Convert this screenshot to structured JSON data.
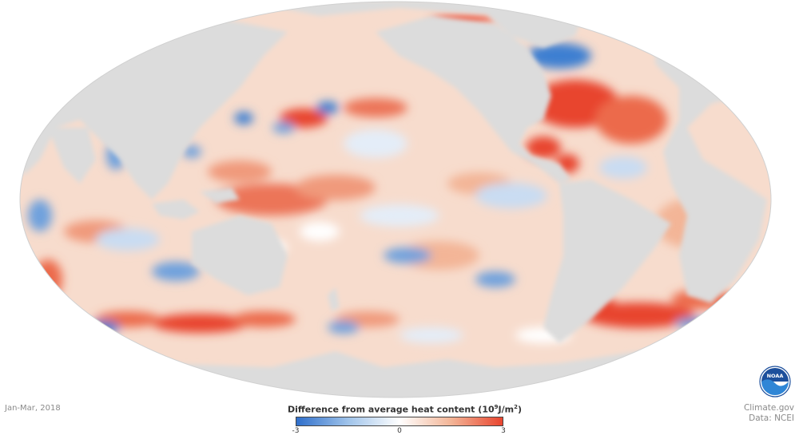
{
  "date_label": "Jan-Mar, 2018",
  "legend": {
    "title": "Difference from average heat content",
    "unit_prefix": "(10",
    "unit_exp": "9",
    "unit_mid": "J/m",
    "unit_exp2": "2",
    "unit_suffix": ")",
    "min_label": "-3",
    "mid_label": "0",
    "max_label": "3",
    "colors": [
      "#2f6fcb",
      "#9fc3ea",
      "#ffffff",
      "#f3b597",
      "#e8452f"
    ]
  },
  "credits": {
    "line1": "Climate.gov",
    "line2": "Data: NCEI"
  },
  "logo": {
    "text": "NOAA",
    "icon": "noaa-logo"
  },
  "colors": {
    "land": "#dcdcdc",
    "ocean_base": "#f7dccd",
    "warm": "#e8452f",
    "cool": "#3d7fd1"
  }
}
